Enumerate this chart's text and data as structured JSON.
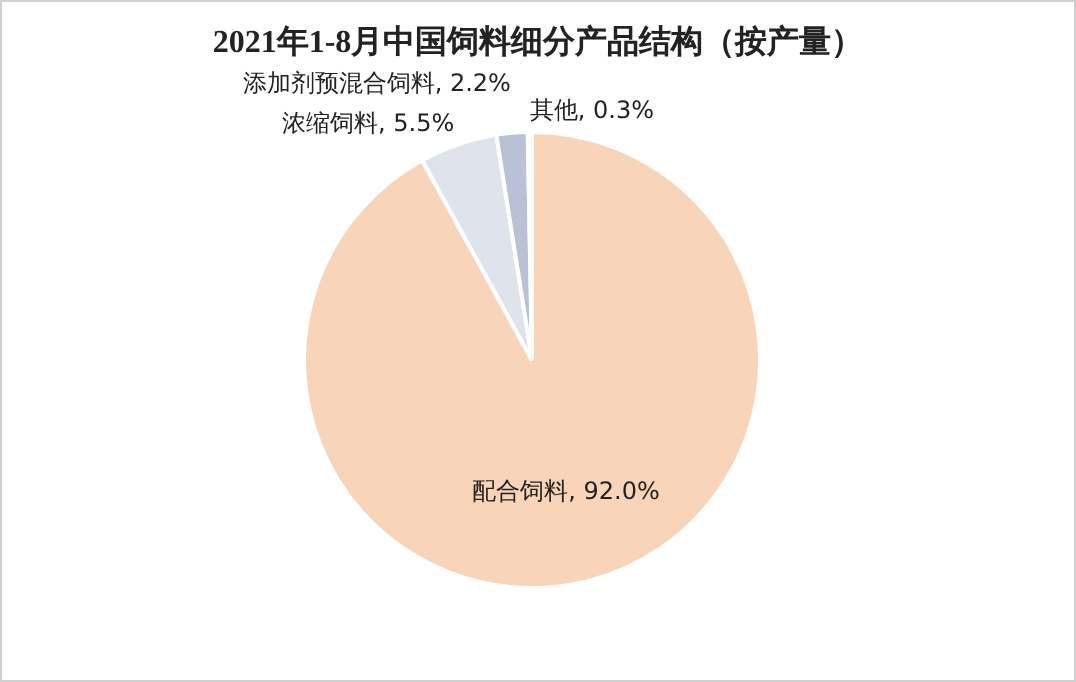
{
  "chart_data": {
    "type": "pie",
    "title": "2021年1-8月中国饲料细分产品结构（按产量）",
    "categories": [
      "配合饲料",
      "浓缩饲料",
      "添加剂预混合饲料",
      "其他"
    ],
    "values": [
      92.0,
      5.5,
      2.2,
      0.3
    ],
    "value_labels": [
      "92.0%",
      "5.5%",
      "2.2%",
      "0.3%"
    ],
    "colors": [
      "#f8d5b9",
      "#dfe4ec",
      "#b9c1d6",
      "#e9ecf3"
    ],
    "legend": false
  }
}
